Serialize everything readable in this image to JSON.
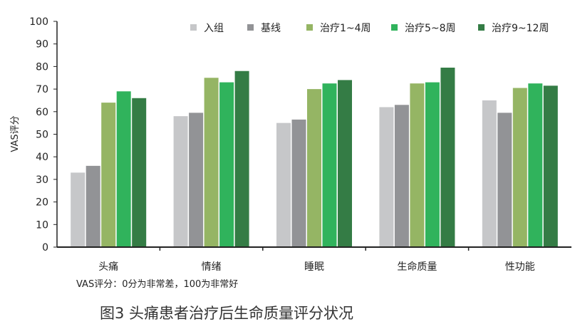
{
  "chart_data": {
    "type": "bar",
    "ylabel": "VAS评分",
    "ylim": [
      0,
      100
    ],
    "yticks": [
      "0",
      "10",
      "20",
      "30",
      "40",
      "50",
      "60",
      "70",
      "80",
      "90",
      "100"
    ],
    "categories": [
      "头痛",
      "情绪",
      "睡眠",
      "生命质量",
      "性功能"
    ],
    "legend_position": "top-right",
    "grid": false,
    "series": [
      {
        "name": "入组",
        "color": "#c6c7c9",
        "values": [
          33,
          58,
          55,
          62,
          65
        ]
      },
      {
        "name": "基线",
        "color": "#929396",
        "values": [
          36,
          59.5,
          56.5,
          63,
          59.5
        ]
      },
      {
        "name": "治疗1~4周",
        "color": "#95b564",
        "values": [
          64,
          75,
          70,
          72.5,
          70.5
        ]
      },
      {
        "name": "治疗5~8周",
        "color": "#30b35c",
        "values": [
          69,
          73,
          72.5,
          73,
          72.5
        ]
      },
      {
        "name": "治疗9~12周",
        "color": "#347c45",
        "values": [
          66,
          78,
          74,
          79.5,
          71.5
        ]
      }
    ],
    "note": "VAS评分：0分为非常差，100为非常好"
  },
  "caption": "图3  头痛患者治疗后生命质量评分状况"
}
